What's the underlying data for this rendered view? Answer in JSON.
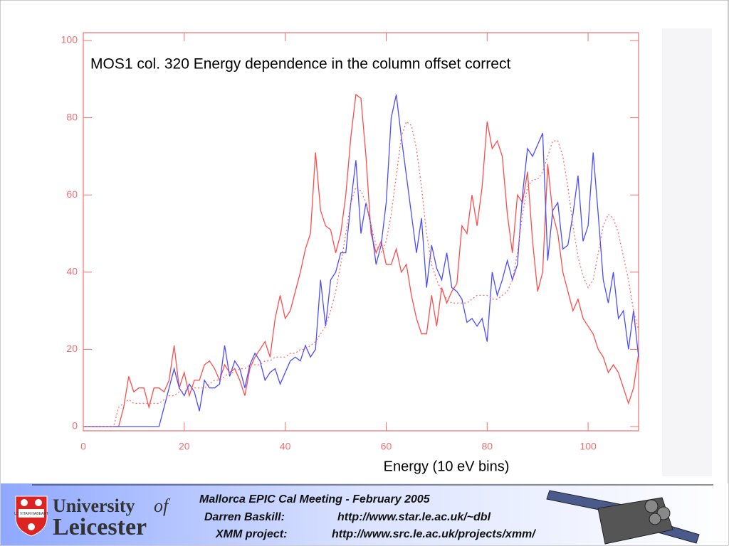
{
  "chart_data": {
    "type": "line",
    "title": "MOS1 col. 320 Energy dependence in the column offset correct",
    "x_label": "Energy (10 eV bins)",
    "axis_color": "#f07070",
    "x": [
      0,
      1,
      2,
      3,
      4,
      5,
      6,
      7,
      8,
      9,
      10,
      11,
      12,
      13,
      14,
      15,
      16,
      17,
      18,
      19,
      20,
      21,
      22,
      23,
      24,
      25,
      26,
      27,
      28,
      29,
      30,
      31,
      32,
      33,
      34,
      35,
      36,
      37,
      38,
      39,
      40,
      41,
      42,
      43,
      44,
      45,
      46,
      47,
      48,
      49,
      50,
      51,
      52,
      53,
      54,
      55,
      56,
      57,
      58,
      59,
      60,
      61,
      62,
      63,
      64,
      65,
      66,
      67,
      68,
      69,
      70,
      71,
      72,
      73,
      74,
      75,
      76,
      77,
      78,
      79,
      80,
      81,
      82,
      83,
      84,
      85,
      86,
      87,
      88,
      89,
      90,
      91,
      92,
      93,
      94,
      95,
      96,
      97,
      98,
      99,
      100,
      101,
      102,
      103,
      104,
      105,
      106,
      107,
      108,
      109,
      110
    ],
    "series": [
      {
        "color": "#ff4c4c",
        "dash": "solid",
        "values": [
          0,
          0,
          0,
          0,
          0,
          0,
          0,
          0,
          5,
          13,
          9,
          10,
          10,
          5,
          10,
          10,
          9,
          12,
          21,
          10,
          14,
          8,
          12,
          12,
          16,
          17,
          15,
          12,
          16,
          14,
          15,
          12,
          8,
          15,
          18,
          20,
          22,
          18,
          28,
          34,
          28,
          30,
          35,
          40,
          46,
          50,
          71,
          56,
          52,
          51,
          45,
          50,
          60,
          75,
          86,
          85,
          70,
          50,
          45,
          48,
          42,
          42,
          46,
          40,
          42,
          34,
          28,
          24,
          24,
          34,
          26,
          36,
          32,
          35,
          37,
          52,
          50,
          60,
          52,
          62,
          79,
          72,
          74,
          70,
          55,
          45,
          60,
          58,
          66,
          48,
          35,
          40,
          68,
          55,
          50,
          40,
          35,
          30,
          33,
          28,
          26,
          24,
          20,
          18,
          14,
          16,
          14,
          10,
          6,
          10,
          19
        ]
      },
      {
        "color": "#4c4cff",
        "dash": "solid",
        "values": [
          0,
          0,
          0,
          0,
          0,
          0,
          0,
          0,
          0,
          0,
          0,
          0,
          0,
          0,
          0,
          0,
          5,
          10,
          15,
          10,
          8,
          11,
          9,
          4,
          12,
          10,
          10,
          11,
          21,
          13,
          17,
          15,
          10,
          16,
          19,
          17,
          12,
          14,
          15,
          11,
          14,
          17,
          18,
          17,
          21,
          18,
          20,
          38,
          26,
          38,
          40,
          45,
          45,
          58,
          69,
          50,
          58,
          52,
          42,
          47,
          58,
          80,
          86,
          75,
          65,
          55,
          45,
          54,
          36,
          47,
          41,
          38,
          45,
          36,
          35,
          33,
          27,
          28,
          26,
          28,
          22,
          40,
          34,
          38,
          43,
          38,
          42,
          60,
          72,
          70,
          73,
          76,
          43,
          56,
          58,
          46,
          47,
          55,
          65,
          48,
          52,
          71,
          55,
          38,
          32,
          40,
          28,
          30,
          20,
          30,
          18
        ]
      },
      {
        "color": "#ff6b6b",
        "dash": "dotted",
        "values": [
          0,
          0,
          0,
          0,
          0,
          0,
          0,
          5,
          6,
          7,
          6,
          6,
          6,
          6,
          6,
          6,
          7,
          8,
          8,
          9,
          9,
          10,
          10,
          10,
          10,
          11,
          12,
          12,
          13,
          14,
          14,
          15,
          15,
          16,
          16,
          16,
          17,
          17,
          18,
          18,
          18,
          19,
          19,
          20,
          20,
          21,
          22,
          24,
          26,
          30,
          35,
          42,
          50,
          58,
          62,
          61,
          58,
          52,
          47,
          45,
          48,
          55,
          65,
          75,
          79,
          78,
          72,
          62,
          50,
          42,
          38,
          35,
          33,
          32,
          32,
          32,
          32,
          33,
          34,
          34,
          34,
          33,
          33,
          34,
          35,
          38,
          45,
          55,
          62,
          64,
          64,
          66,
          70,
          74,
          74,
          70,
          62,
          52,
          44,
          39,
          36,
          38,
          45,
          52,
          55,
          54,
          50,
          44,
          38,
          30,
          25
        ]
      }
    ],
    "xlim": [
      0,
      110
    ],
    "xticks": [
      0,
      20,
      40,
      60,
      80,
      100
    ],
    "ylim": [
      0,
      100
    ],
    "yticks": [
      0,
      20,
      40,
      60,
      80,
      100
    ],
    "grid": false
  },
  "footer": {
    "meeting": "Mallorca EPIC Cal Meeting - February 2005",
    "contact_label": "Darren Baskill:",
    "contact_url": "http://www.star.le.ac.uk/~dbl",
    "project_label": "XMM project:",
    "project_url": "http://www.src.le.ac.uk/projects/xmm/"
  },
  "logo": {
    "line1": "University",
    "of": "of",
    "line2": "Leicester",
    "motto": "UT VITAM HABEANT"
  }
}
